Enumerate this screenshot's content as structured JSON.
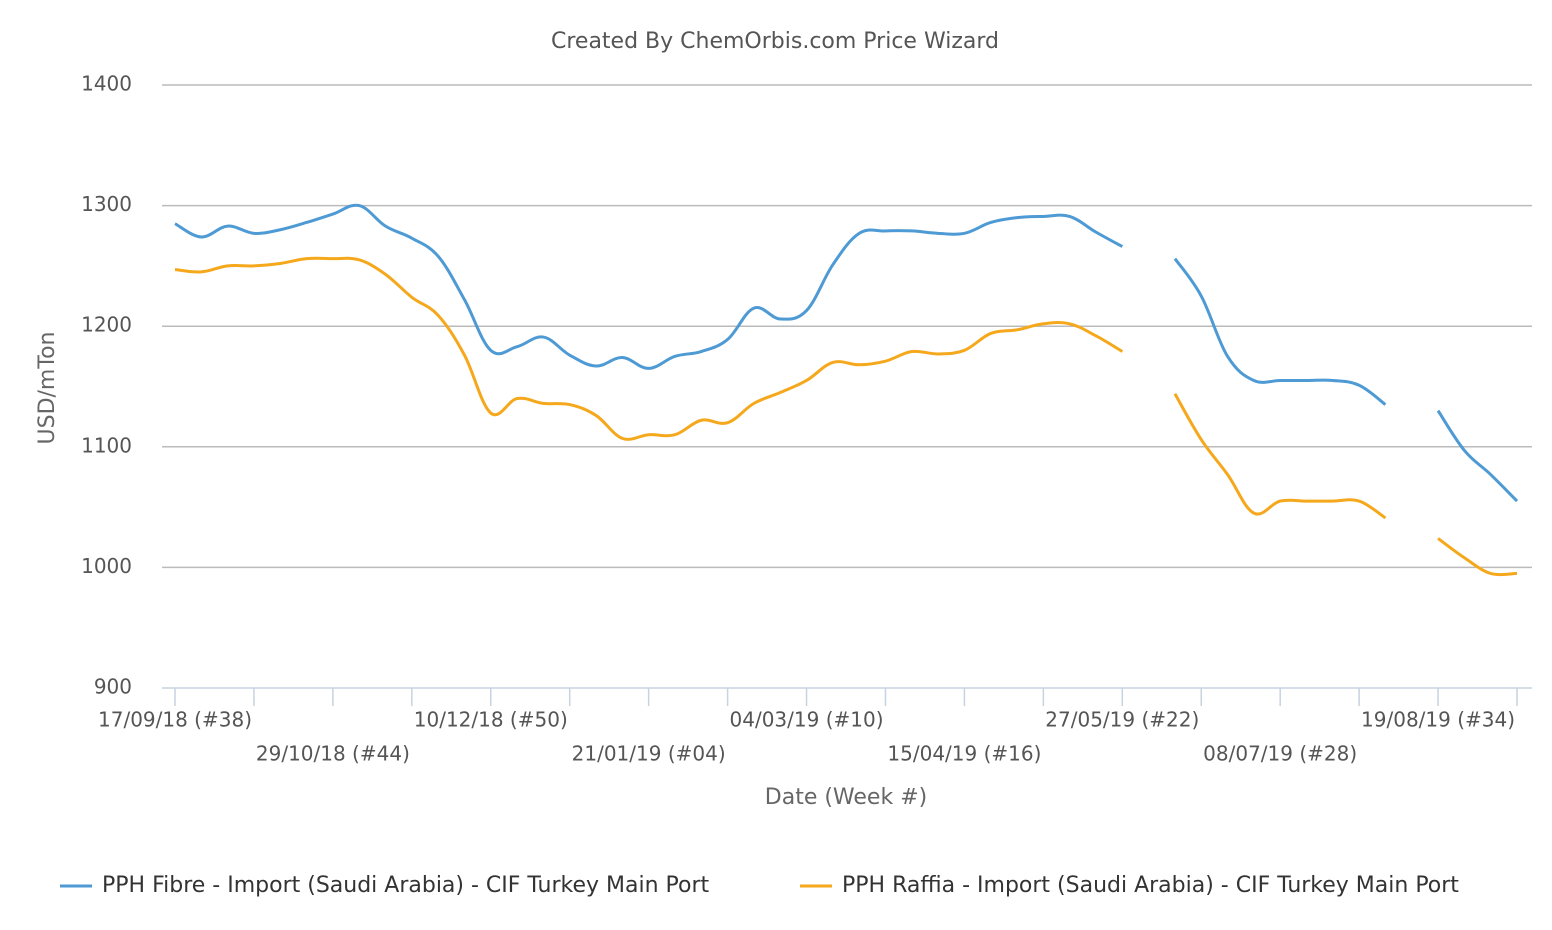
{
  "chart_data": {
    "type": "line",
    "title": "Created By ChemOrbis.com Price Wizard",
    "x_label": "Date (Week #)",
    "y_label": "USD/mTon",
    "categories": [
      "17/09/18 (#38)",
      null,
      null,
      null,
      null,
      null,
      "29/10/18 (#44)",
      null,
      null,
      null,
      null,
      null,
      "10/12/18 (#50)",
      null,
      null,
      null,
      null,
      null,
      "21/01/19 (#04)",
      null,
      null,
      null,
      null,
      null,
      "04/03/19 (#10)",
      null,
      null,
      null,
      null,
      null,
      "15/04/19 (#16)",
      null,
      null,
      null,
      null,
      null,
      "27/05/19 (#22)",
      null,
      null,
      null,
      null,
      null,
      "08/07/19 (#28)",
      null,
      null,
      null,
      null,
      null,
      "19/08/19 (#34)",
      null,
      null,
      null
    ],
    "series": [
      {
        "name": "PPH Fibre - Import (Saudi Arabia) - CIF Turkey Main Port",
        "color": "#4e9ad4",
        "values": [
          1285,
          1274,
          1283,
          1277,
          1280,
          1286,
          1293,
          1300,
          1283,
          1273,
          1258,
          1222,
          1180,
          1183,
          1191,
          1176,
          1167,
          1174,
          1165,
          1175,
          1179,
          1189,
          1215,
          1206,
          1213,
          1251,
          1277,
          1279,
          1279,
          1277,
          1277,
          1286,
          1290,
          1291,
          1291,
          1278,
          1266,
          null,
          1256,
          1225,
          1175,
          1155,
          1155,
          1155,
          1155,
          1151,
          1135,
          null,
          1130,
          1097,
          1077,
          1055
        ]
      },
      {
        "name": "PPH Raffia - Import (Saudi Arabia) - CIF Turkey Main Port",
        "color": "#f5a81c",
        "values": [
          1247,
          1245,
          1250,
          1250,
          1252,
          1256,
          1256,
          1255,
          1243,
          1224,
          1209,
          1176,
          1128,
          1140,
          1136,
          1135,
          1126,
          1107,
          1110,
          1110,
          1122,
          1120,
          1136,
          1145,
          1155,
          1170,
          1168,
          1171,
          1179,
          1177,
          1180,
          1194,
          1197,
          1202,
          1202,
          1192,
          1179,
          null,
          1144,
          1106,
          1077,
          1045,
          1055,
          1055,
          1055,
          1055,
          1041,
          null,
          1024,
          1008,
          995,
          995
        ]
      }
    ],
    "ylim": [
      900,
      1400
    ],
    "yticks": [
      900,
      1000,
      1100,
      1200,
      1300,
      1400
    ],
    "grid": true,
    "legend": "bottom"
  }
}
